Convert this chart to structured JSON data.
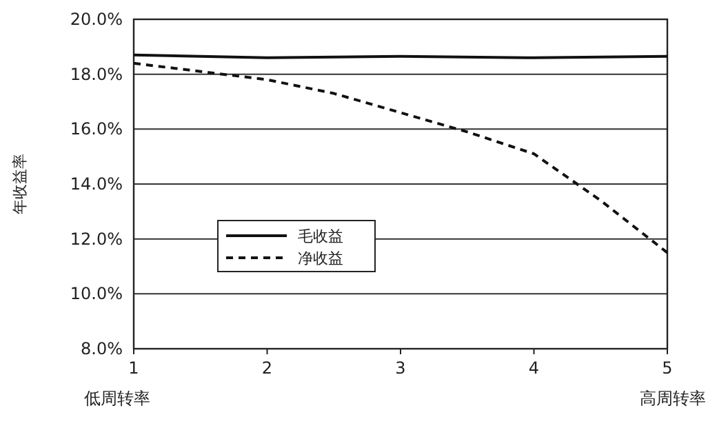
{
  "chart_data": {
    "type": "line",
    "ylabel": "年收益率",
    "series": [
      {
        "name": "毛收益",
        "color": "#111111",
        "line_style": "solid",
        "x": [
          1,
          2,
          3,
          4,
          5
        ],
        "values": [
          18.7,
          18.6,
          18.65,
          18.6,
          18.65
        ]
      },
      {
        "name": "净收益",
        "color": "#111111",
        "line_style": "dashed",
        "x": [
          1,
          2,
          2.5,
          3,
          3.5,
          4,
          4.5,
          5
        ],
        "values": [
          18.4,
          17.8,
          17.3,
          16.6,
          15.9,
          15.1,
          13.4,
          11.5
        ]
      }
    ],
    "xlim": [
      1,
      5
    ],
    "xticks": [
      1,
      2,
      3,
      4,
      5
    ],
    "ylim": [
      8,
      20
    ],
    "yticks": [
      {
        "value": 8,
        "label": "8.0%"
      },
      {
        "value": 10,
        "label": "10.0%"
      },
      {
        "value": 12,
        "label": "12.0%"
      },
      {
        "value": 14,
        "label": "14.0%"
      },
      {
        "value": 16,
        "label": "16.0%"
      },
      {
        "value": 18,
        "label": "18.0%"
      },
      {
        "value": 20,
        "label": "20.0%"
      }
    ],
    "grid": "y",
    "legend": "center left",
    "annotations": [
      "低周转率",
      "高周转率"
    ]
  }
}
